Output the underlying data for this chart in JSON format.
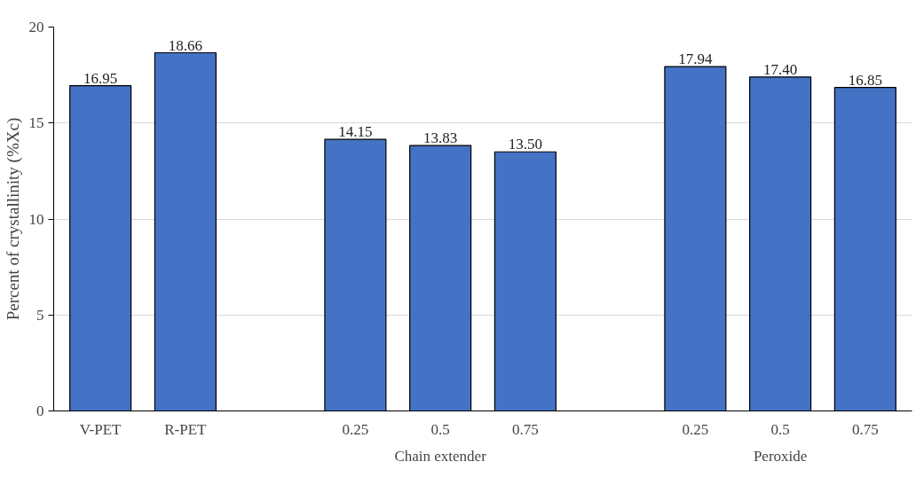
{
  "chart_data": {
    "type": "bar",
    "ylabel": "Percent of crystallinity (%Xc)",
    "categories": [
      "V-PET",
      "R-PET",
      null,
      "0.25",
      "0.5",
      "0.75",
      null,
      "0.25",
      "0.5",
      "0.75"
    ],
    "values": [
      16.95,
      18.66,
      null,
      14.15,
      13.83,
      13.5,
      null,
      17.94,
      17.4,
      16.85
    ],
    "value_labels": [
      "16.95",
      "18.66",
      null,
      "14.15",
      "13.83",
      "13.50",
      null,
      "17.94",
      "17.40",
      "16.85"
    ],
    "color": "#4472c4",
    "ylim": [
      0,
      20
    ],
    "yticks": [
      0,
      5,
      10,
      15,
      20
    ],
    "grid": "y",
    "annotations": [
      "Chain extender",
      "Peroxide"
    ]
  }
}
